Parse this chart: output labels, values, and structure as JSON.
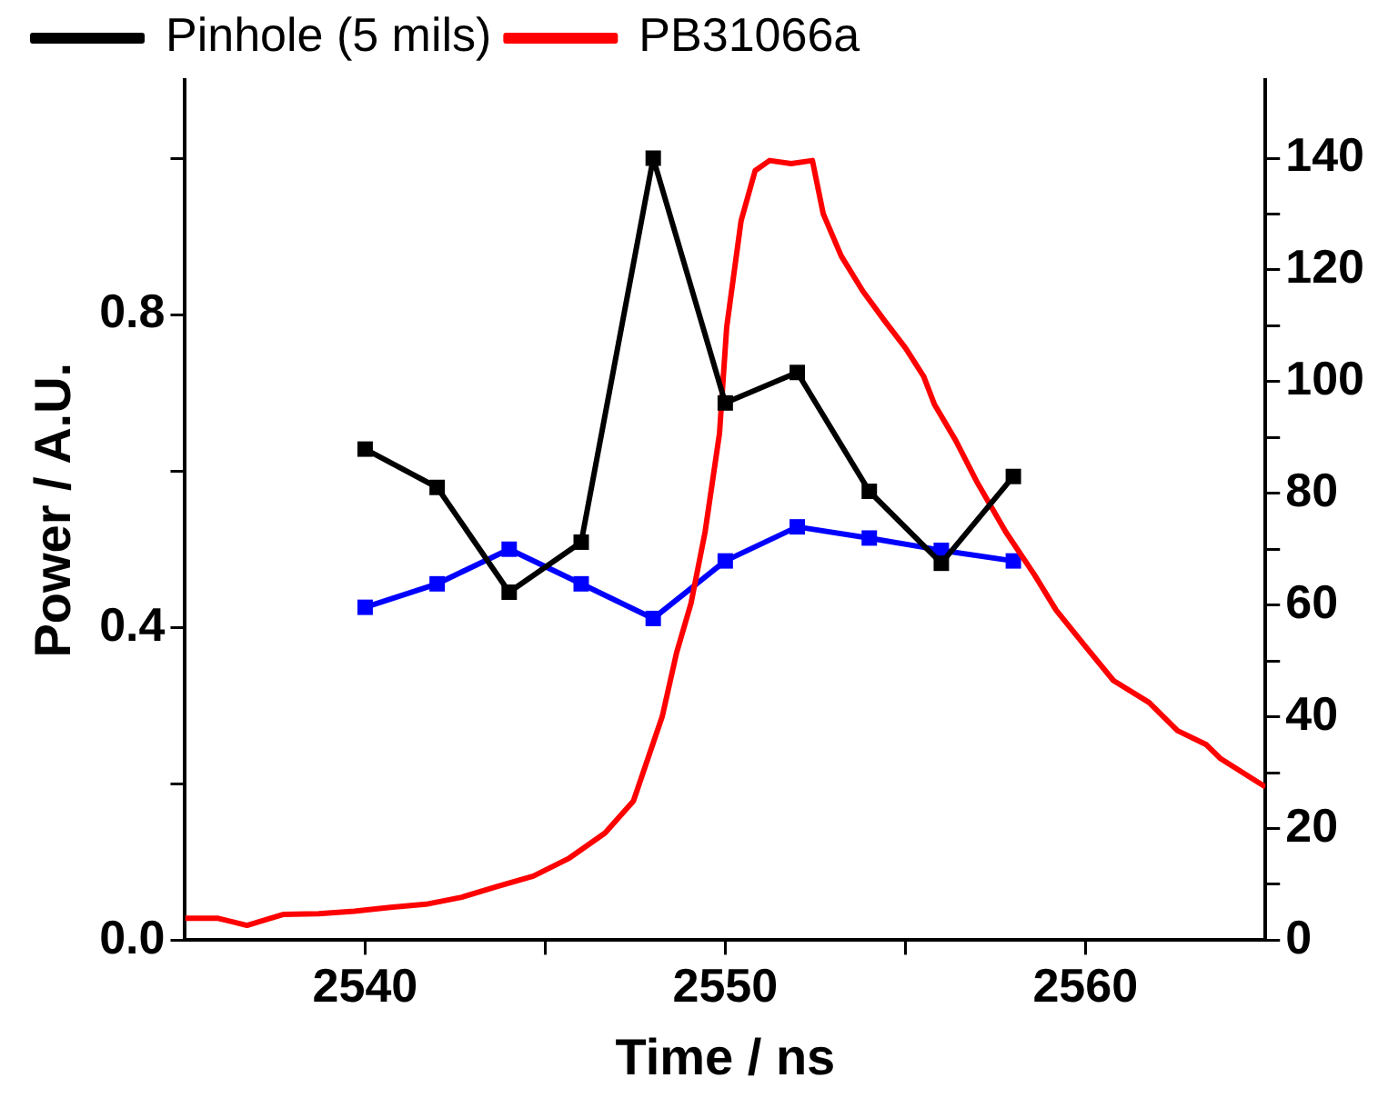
{
  "chart_data": {
    "type": "line",
    "xlabel": "Time / ns",
    "ylabel": "Power / A.U.",
    "legend": "top left",
    "grid": false,
    "xlim": [
      2535,
      2565
    ],
    "xticks": [
      2540,
      {
        "value": 2545,
        "label": null
      },
      2550,
      {
        "value": 2555,
        "label": null
      },
      2560
    ],
    "ylim": [
      0,
      1.1
    ],
    "yticks": [
      {
        "value": 0,
        "label": "0.0"
      },
      {
        "value": 0.2,
        "label": null
      },
      0.4,
      {
        "value": 0.6,
        "label": null
      },
      0.8,
      {
        "value": 1.0,
        "label": null
      }
    ],
    "y2lim": [
      0,
      154
    ],
    "y2ticks": [
      0,
      {
        "value": 10,
        "label": null
      },
      20,
      {
        "value": 30,
        "label": null
      },
      40,
      {
        "value": 50,
        "label": null
      },
      60,
      {
        "value": 70,
        "label": null
      },
      80,
      {
        "value": 90,
        "label": null
      },
      100,
      {
        "value": 110,
        "label": null
      },
      120,
      {
        "value": 130,
        "label": null
      },
      140
    ],
    "series": [
      {
        "name": "Pinhole (5 mils)",
        "color": "#000000",
        "marker": "square",
        "x": [
          2540,
          2542,
          2544,
          2546,
          2548,
          2550,
          2552,
          2554,
          2556,
          2558
        ],
        "values": [
          0.628,
          0.579,
          0.445,
          0.509,
          1.0,
          0.687,
          0.726,
          0.574,
          0.482,
          0.593
        ]
      },
      {
        "name": "PB31066a",
        "color": "#ff0000",
        "marker": "none",
        "x": [
          2535,
          2535.92,
          2536.72,
          2537.72,
          2538.71,
          2539.7,
          2540.7,
          2541.69,
          2542.68,
          2543.68,
          2544.67,
          2545.67,
          2546.66,
          2547.45,
          2547.85,
          2548.25,
          2548.65,
          2549.05,
          2549.44,
          2549.84,
          2550.04,
          2550.44,
          2550.83,
          2551.23,
          2551.83,
          2552.42,
          2552.72,
          2553.22,
          2553.82,
          2554.41,
          2555.01,
          2555.51,
          2555.81,
          2556.4,
          2557,
          2557.79,
          2558.59,
          2559.19,
          2559.98,
          2560.78,
          2561.77,
          2562.56,
          2563.36,
          2563.76,
          2564.55,
          2565
        ],
        "values": [
          0.028,
          0.028,
          0.019,
          0.033,
          0.034,
          0.037,
          0.042,
          0.046,
          0.055,
          0.069,
          0.082,
          0.105,
          0.137,
          0.178,
          0.232,
          0.286,
          0.368,
          0.431,
          0.522,
          0.648,
          0.784,
          0.92,
          0.984,
          0.997,
          0.993,
          0.997,
          0.929,
          0.875,
          0.83,
          0.793,
          0.757,
          0.721,
          0.685,
          0.639,
          0.585,
          0.522,
          0.467,
          0.422,
          0.377,
          0.332,
          0.304,
          0.268,
          0.25,
          0.232,
          0.209,
          0.196
        ]
      },
      {
        "color": "#0000ff",
        "marker": "square",
        "axis": "y2",
        "x": [
          2540,
          2542,
          2544,
          2546,
          2548,
          2550,
          2552,
          2554,
          2556,
          2558
        ],
        "values": [
          59.6,
          63.8,
          70,
          63.8,
          57.6,
          67.9,
          74,
          72,
          69.8,
          67.9
        ]
      }
    ]
  }
}
